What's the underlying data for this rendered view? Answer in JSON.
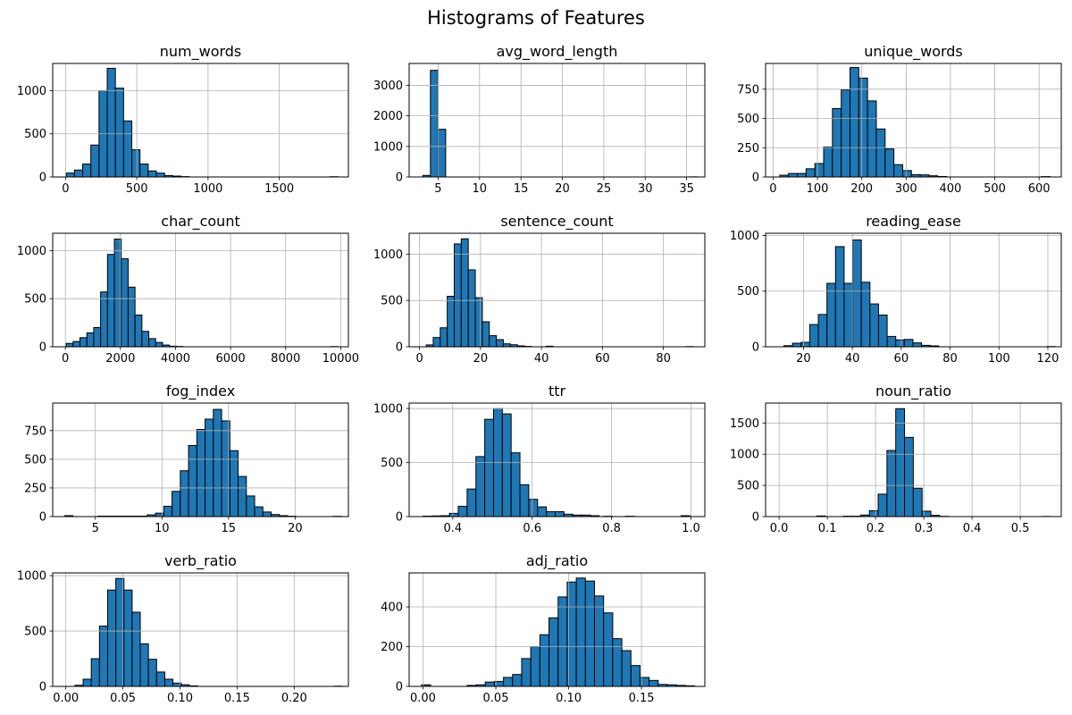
{
  "figure": {
    "suptitle": "Histograms of Features",
    "background": "#ffffff",
    "bar_color": "#1f77b4",
    "bar_edge_color": "#000000",
    "grid_color": "#b0b0b0",
    "spine_color": "#000000",
    "text_color": "#000000"
  },
  "chart_data": [
    {
      "type": "bar",
      "kind": "histogram",
      "title": "num_words",
      "row": 0,
      "col": 0,
      "grid": true,
      "xlim": [
        -90,
        1985
      ],
      "ylim": [
        0,
        1316
      ],
      "xticks": [
        0,
        500,
        1000,
        1500
      ],
      "xtick_labels": [
        "0",
        "500",
        "1000",
        "1500"
      ],
      "yticks": [
        0,
        500,
        1000
      ],
      "ytick_labels": [
        "0",
        "500",
        "1000"
      ],
      "bin_start": 5,
      "bin_width": 57.5,
      "values": [
        45,
        80,
        150,
        370,
        1000,
        1260,
        1030,
        650,
        315,
        150,
        70,
        45,
        17,
        10,
        4
      ],
      "extra_bars": [
        [
          1855,
          3
        ]
      ]
    },
    {
      "type": "bar",
      "kind": "histogram",
      "title": "avg_word_length",
      "row": 0,
      "col": 1,
      "grid": true,
      "xlim": [
        1.5,
        37.2
      ],
      "ylim": [
        0,
        3715
      ],
      "xticks": [
        5,
        10,
        15,
        20,
        25,
        30,
        35
      ],
      "xtick_labels": [
        "5",
        "10",
        "15",
        "20",
        "25",
        "30",
        "35"
      ],
      "yticks": [
        0,
        1000,
        2000,
        3000
      ],
      "ytick_labels": [
        "0",
        "1000",
        "2000",
        "3000"
      ],
      "bin_start": 3.15,
      "bin_width": 0.92,
      "values": [
        50,
        3490,
        1560
      ],
      "extra_bars": [
        [
          35.4,
          4
        ]
      ]
    },
    {
      "type": "bar",
      "kind": "histogram",
      "title": "unique_words",
      "row": 0,
      "col": 2,
      "grid": true,
      "xlim": [
        -17,
        650
      ],
      "ylim": [
        0,
        970
      ],
      "xticks": [
        0,
        100,
        200,
        300,
        400,
        500,
        600
      ],
      "xtick_labels": [
        "0",
        "100",
        "200",
        "300",
        "400",
        "500",
        "600"
      ],
      "yticks": [
        0,
        250,
        500,
        750
      ],
      "ytick_labels": [
        "0",
        "250",
        "500",
        "750"
      ],
      "bin_start": 15,
      "bin_width": 19.8,
      "values": [
        15,
        30,
        30,
        70,
        115,
        255,
        585,
        745,
        935,
        845,
        650,
        410,
        240,
        105,
        55,
        20,
        18,
        10,
        4
      ],
      "extra_bars": [
        [
          605,
          3
        ]
      ]
    },
    {
      "type": "bar",
      "kind": "histogram",
      "title": "char_count",
      "row": 1,
      "col": 0,
      "grid": true,
      "xlim": [
        -460,
        10280
      ],
      "ylim": [
        0,
        1180
      ],
      "xticks": [
        0,
        2000,
        4000,
        6000,
        8000,
        10000
      ],
      "xtick_labels": [
        "0",
        "2000",
        "4000",
        "6000",
        "8000",
        "10000"
      ],
      "yticks": [
        0,
        500,
        1000
      ],
      "ytick_labels": [
        "0",
        "500",
        "1000"
      ],
      "bin_start": 30,
      "bin_width": 250,
      "values": [
        35,
        55,
        95,
        145,
        200,
        570,
        960,
        1120,
        915,
        620,
        330,
        160,
        85,
        45,
        18,
        6,
        3
      ],
      "extra_bars": [
        [
          9650,
          2
        ]
      ]
    },
    {
      "type": "bar",
      "kind": "histogram",
      "title": "sentence_count",
      "row": 1,
      "col": 1,
      "grid": true,
      "xlim": [
        -3.4,
        93.6
      ],
      "ylim": [
        0,
        1225
      ],
      "xticks": [
        0,
        20,
        40,
        60,
        80
      ],
      "xtick_labels": [
        "0",
        "20",
        "40",
        "60",
        "80"
      ],
      "yticks": [
        0,
        500,
        1000
      ],
      "ytick_labels": [
        "0",
        "500",
        "1000"
      ],
      "bin_start": 2.2,
      "bin_width": 2.3,
      "values": [
        20,
        100,
        205,
        545,
        1110,
        1165,
        830,
        530,
        270,
        120,
        77,
        32,
        22,
        10,
        4
      ],
      "extra_bars": [
        [
          41.5,
          6
        ],
        [
          87.5,
          2
        ]
      ]
    },
    {
      "type": "bar",
      "kind": "histogram",
      "title": "reading_ease",
      "row": 1,
      "col": 2,
      "grid": true,
      "xlim": [
        4.5,
        125.5
      ],
      "ylim": [
        0,
        1020
      ],
      "xticks": [
        20,
        40,
        60,
        80,
        100,
        120
      ],
      "xtick_labels": [
        "20",
        "40",
        "60",
        "80",
        "100",
        "120"
      ],
      "yticks": [
        0,
        500,
        1000
      ],
      "ytick_labels": [
        "0",
        "500",
        "1000"
      ],
      "bin_start": 12,
      "bin_width": 3.52,
      "values": [
        10,
        32,
        40,
        200,
        290,
        570,
        900,
        570,
        960,
        580,
        385,
        285,
        93,
        62,
        66,
        35,
        13,
        8
      ],
      "extra_bars": [
        [
          119.5,
          2
        ]
      ]
    },
    {
      "type": "bar",
      "kind": "histogram",
      "title": "fog_index",
      "row": 2,
      "col": 0,
      "grid": true,
      "xlim": [
        1.8,
        24.0
      ],
      "ylim": [
        0,
        990
      ],
      "xticks": [
        5,
        10,
        15,
        20
      ],
      "xtick_labels": [
        "5",
        "10",
        "15",
        "20"
      ],
      "yticks": [
        0,
        250,
        500,
        750
      ],
      "ytick_labels": [
        "0",
        "250",
        "500",
        "750"
      ],
      "bin_start": 2.7,
      "bin_width": 0.62,
      "values": [
        8,
        0,
        0,
        0,
        4,
        4,
        4,
        4,
        4,
        4,
        15,
        30,
        90,
        220,
        400,
        620,
        760,
        850,
        935,
        835,
        575,
        350,
        180,
        85,
        40,
        18,
        8,
        3
      ],
      "extra_bars": [
        [
          22.85,
          2
        ]
      ]
    },
    {
      "type": "bar",
      "kind": "histogram",
      "title": "ttr",
      "row": 2,
      "col": 1,
      "grid": true,
      "xlim": [
        0.29,
        1.035
      ],
      "ylim": [
        0,
        1050
      ],
      "xticks": [
        0.4,
        0.6,
        0.8,
        1.0
      ],
      "xtick_labels": [
        "0.4",
        "0.6",
        "0.8",
        "1.0"
      ],
      "yticks": [
        0,
        500,
        1000
      ],
      "ytick_labels": [
        "0",
        "500",
        "1000"
      ],
      "bin_start": 0.325,
      "bin_width": 0.0222,
      "values": [
        4,
        6,
        8,
        30,
        95,
        255,
        555,
        900,
        1000,
        950,
        590,
        295,
        160,
        90,
        45,
        45,
        22,
        14,
        14,
        8
      ],
      "extra_bars": [
        [
          0.78,
          3
        ],
        [
          0.835,
          3
        ],
        [
          0.975,
          8
        ]
      ]
    },
    {
      "type": "bar",
      "kind": "histogram",
      "title": "noun_ratio",
      "row": 2,
      "col": 2,
      "grid": true,
      "xlim": [
        -0.028,
        0.585
      ],
      "ylim": [
        0,
        1820
      ],
      "xticks": [
        0.0,
        0.1,
        0.2,
        0.3,
        0.4,
        0.5
      ],
      "xtick_labels": [
        "0.0",
        "0.1",
        "0.2",
        "0.3",
        "0.4",
        "0.5"
      ],
      "yticks": [
        0,
        500,
        1000,
        1500
      ],
      "ytick_labels": [
        "0",
        "500",
        "1000",
        "1500"
      ],
      "bin_start": 0.078,
      "bin_width": 0.0182,
      "values": [
        10,
        0,
        0,
        6,
        6,
        25,
        95,
        360,
        1060,
        1730,
        1270,
        455,
        87,
        20,
        4
      ],
      "extra_bars": [
        [
          0.545,
          2
        ]
      ]
    },
    {
      "type": "bar",
      "kind": "histogram",
      "title": "verb_ratio",
      "row": 3,
      "col": 0,
      "grid": true,
      "xlim": [
        -0.0115,
        0.2475
      ],
      "ylim": [
        0,
        1025
      ],
      "xticks": [
        0.0,
        0.05,
        0.1,
        0.15,
        0.2
      ],
      "xtick_labels": [
        "0.00",
        "0.05",
        "0.10",
        "0.15",
        "0.20"
      ],
      "yticks": [
        0,
        500,
        1000
      ],
      "ytick_labels": [
        "0",
        "500",
        "1000"
      ],
      "bin_start": 0.008,
      "bin_width": 0.00715,
      "values": [
        10,
        65,
        250,
        545,
        870,
        975,
        870,
        670,
        385,
        245,
        130,
        65,
        30,
        15,
        5
      ],
      "extra_bars": [
        [
          0.235,
          2
        ]
      ]
    },
    {
      "type": "bar",
      "kind": "histogram",
      "title": "adj_ratio",
      "row": 3,
      "col": 1,
      "grid": true,
      "xlim": [
        -0.0095,
        0.1935
      ],
      "ylim": [
        0,
        571
      ],
      "xticks": [
        0.0,
        0.05,
        0.1,
        0.15
      ],
      "xtick_labels": [
        "0.00",
        "0.05",
        "0.10",
        "0.15"
      ],
      "yticks": [
        0,
        200,
        400
      ],
      "ytick_labels": [
        "0",
        "200",
        "400"
      ],
      "bin_start": -0.001,
      "bin_width": 0.00625,
      "values": [
        8,
        0,
        0,
        0,
        0,
        5,
        8,
        22,
        25,
        45,
        60,
        140,
        200,
        260,
        345,
        450,
        525,
        545,
        530,
        455,
        370,
        240,
        180,
        105,
        45,
        30,
        10,
        8,
        5,
        3
      ]
    }
  ]
}
